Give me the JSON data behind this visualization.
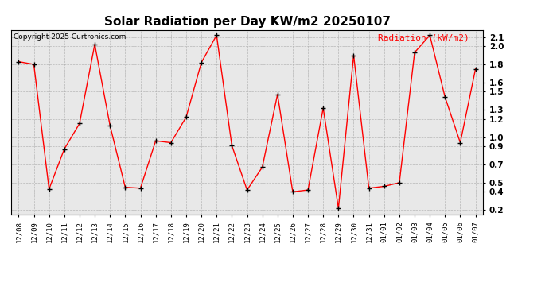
{
  "title": "Solar Radiation per Day KW/m2 20250107",
  "copyright_text": "Copyright 2025 Curtronics.com",
  "legend_label": "Radiation (kW/m2)",
  "dates": [
    "12/08",
    "12/09",
    "12/10",
    "12/11",
    "12/12",
    "12/13",
    "12/14",
    "12/15",
    "12/16",
    "12/17",
    "12/18",
    "12/19",
    "12/20",
    "12/21",
    "12/22",
    "12/23",
    "12/24",
    "12/25",
    "12/26",
    "12/27",
    "12/28",
    "12/29",
    "12/30",
    "12/31",
    "01/01",
    "01/02",
    "01/03",
    "01/04",
    "01/05",
    "01/06",
    "01/07"
  ],
  "values": [
    1.83,
    1.8,
    0.43,
    0.87,
    1.15,
    2.02,
    1.13,
    0.45,
    0.44,
    0.96,
    0.94,
    1.22,
    1.82,
    2.12,
    0.91,
    0.42,
    0.67,
    1.47,
    0.4,
    0.42,
    1.32,
    0.22,
    1.9,
    0.44,
    0.46,
    0.5,
    1.93,
    2.12,
    1.44,
    0.94,
    1.75
  ],
  "line_color": "#ff0000",
  "marker_color": "#000000",
  "background_color": "#ffffff",
  "plot_bg_color": "#e8e8e8",
  "grid_color": "#aaaaaa",
  "title_fontsize": 11,
  "yticks": [
    0.2,
    0.4,
    0.5,
    0.7,
    0.9,
    1.0,
    1.2,
    1.3,
    1.5,
    1.6,
    1.8,
    2.0,
    2.1
  ],
  "ylim_min": 0.15,
  "ylim_max": 2.18
}
